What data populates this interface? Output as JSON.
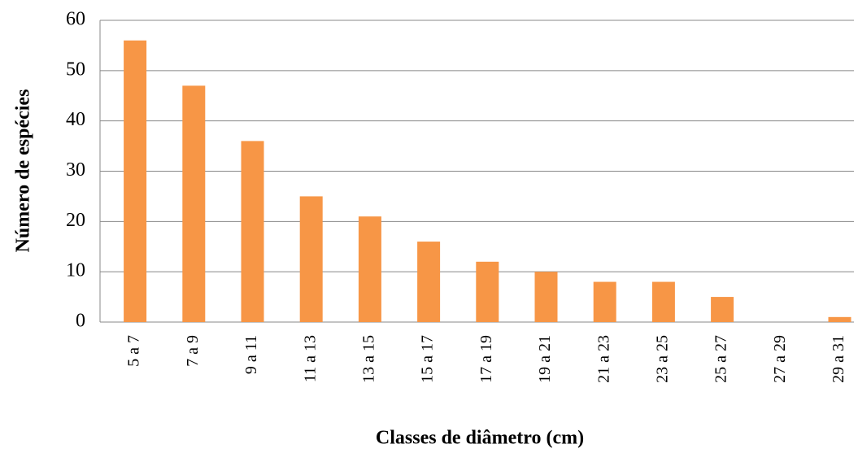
{
  "chart_data": {
    "type": "bar",
    "xlabel": "Classes de diâmetro (cm)",
    "ylabel": "Número de espécies",
    "categories": [
      "5 a 7",
      "7 a 9",
      "9 a 11",
      "11 a 13",
      "13 a 15",
      "15 a 17",
      "17 a 19",
      "19 a 21",
      "21 a 23",
      "23 a 25",
      "25 a 27",
      "27 a 29",
      "29 a 31"
    ],
    "values": [
      56,
      47,
      36,
      25,
      21,
      16,
      12,
      10,
      8,
      8,
      5,
      0,
      1
    ],
    "color": "#f79646",
    "ylim": [
      0,
      60
    ],
    "yticks": [
      0,
      10,
      20,
      30,
      40,
      50,
      60
    ],
    "grid": true
  }
}
